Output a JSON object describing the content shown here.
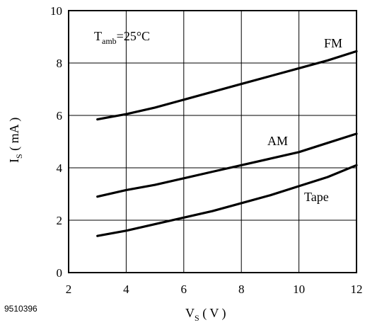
{
  "chart_data": {
    "type": "line",
    "figure_code": "9510396",
    "annotation": "T",
    "annotation_sub": "amb",
    "annotation_tail": "=25°C",
    "xlabel": "V",
    "xlabel_sub": "S",
    "xlabel_unit": " ( V )",
    "ylabel": "I",
    "ylabel_sub": "S",
    "ylabel_unit": " ( mA )",
    "xlim": [
      2,
      12
    ],
    "ylim": [
      0,
      10
    ],
    "xticks": [
      2,
      4,
      6,
      8,
      10,
      12
    ],
    "yticks": [
      0,
      2,
      4,
      6,
      8,
      10
    ],
    "grid": true,
    "series": [
      {
        "name": "FM",
        "x": [
          3,
          4,
          5,
          6,
          7,
          8,
          9,
          10,
          11,
          12
        ],
        "y": [
          5.85,
          6.05,
          6.3,
          6.6,
          6.9,
          7.2,
          7.5,
          7.8,
          8.1,
          8.45
        ]
      },
      {
        "name": "AM",
        "x": [
          3,
          4,
          5,
          6,
          7,
          8,
          9,
          10,
          11,
          12
        ],
        "y": [
          2.9,
          3.15,
          3.35,
          3.6,
          3.85,
          4.1,
          4.35,
          4.6,
          4.95,
          5.3
        ]
      },
      {
        "name": "Tape",
        "x": [
          3,
          4,
          5,
          6,
          7,
          8,
          9,
          10,
          11,
          12
        ],
        "y": [
          1.4,
          1.6,
          1.85,
          2.1,
          2.35,
          2.65,
          2.95,
          3.3,
          3.65,
          4.1
        ]
      }
    ]
  }
}
